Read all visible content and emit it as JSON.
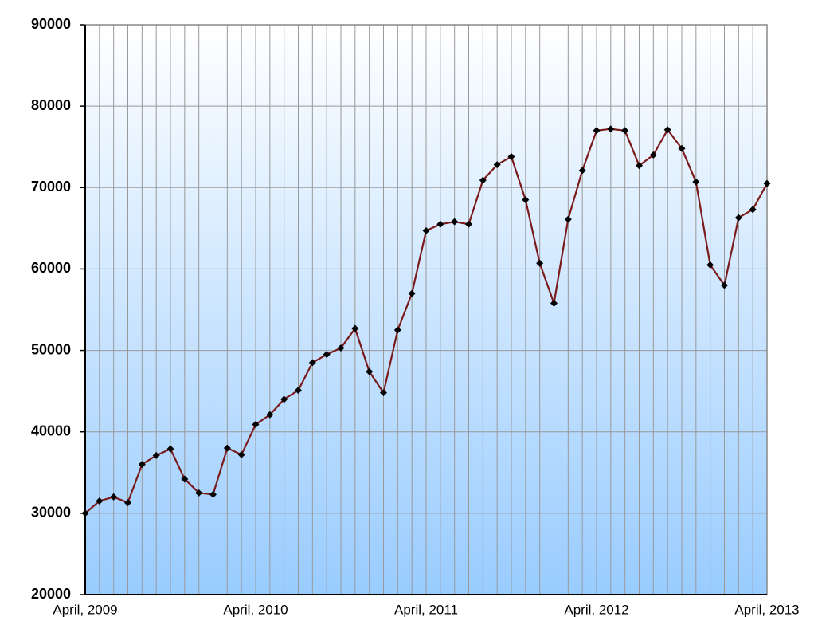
{
  "chart_data": {
    "type": "line",
    "categories": [
      "April, 2009",
      null,
      null,
      null,
      null,
      null,
      null,
      null,
      null,
      null,
      null,
      null,
      "April, 2010",
      null,
      null,
      null,
      null,
      null,
      null,
      null,
      null,
      null,
      null,
      null,
      "April, 2011",
      null,
      null,
      null,
      null,
      null,
      null,
      null,
      null,
      null,
      null,
      null,
      "April, 2012",
      null,
      null,
      null,
      null,
      null,
      null,
      null,
      null,
      null,
      null,
      null,
      "April, 2013"
    ],
    "series": [
      {
        "color": "#7b1a1a",
        "marker_color": "#000000",
        "values": [
          30000,
          31500,
          32000,
          31300,
          36000,
          37100,
          37900,
          34200,
          32500,
          32300,
          38000,
          37200,
          40900,
          42100,
          44000,
          45100,
          48500,
          49500,
          50300,
          52700,
          47400,
          44800,
          52500,
          57000,
          64700,
          65500,
          65800,
          65500,
          70900,
          72800,
          73800,
          68500,
          60700,
          55800,
          66100,
          72100,
          77000,
          77200,
          77000,
          72700,
          74000,
          77100,
          74800,
          70700,
          60500,
          58000,
          66300,
          67300,
          70500
        ]
      }
    ],
    "ylim": [
      20000,
      90000
    ],
    "yticks": [
      20000,
      30000,
      40000,
      50000,
      60000,
      70000,
      80000,
      90000
    ],
    "grid": true
  }
}
